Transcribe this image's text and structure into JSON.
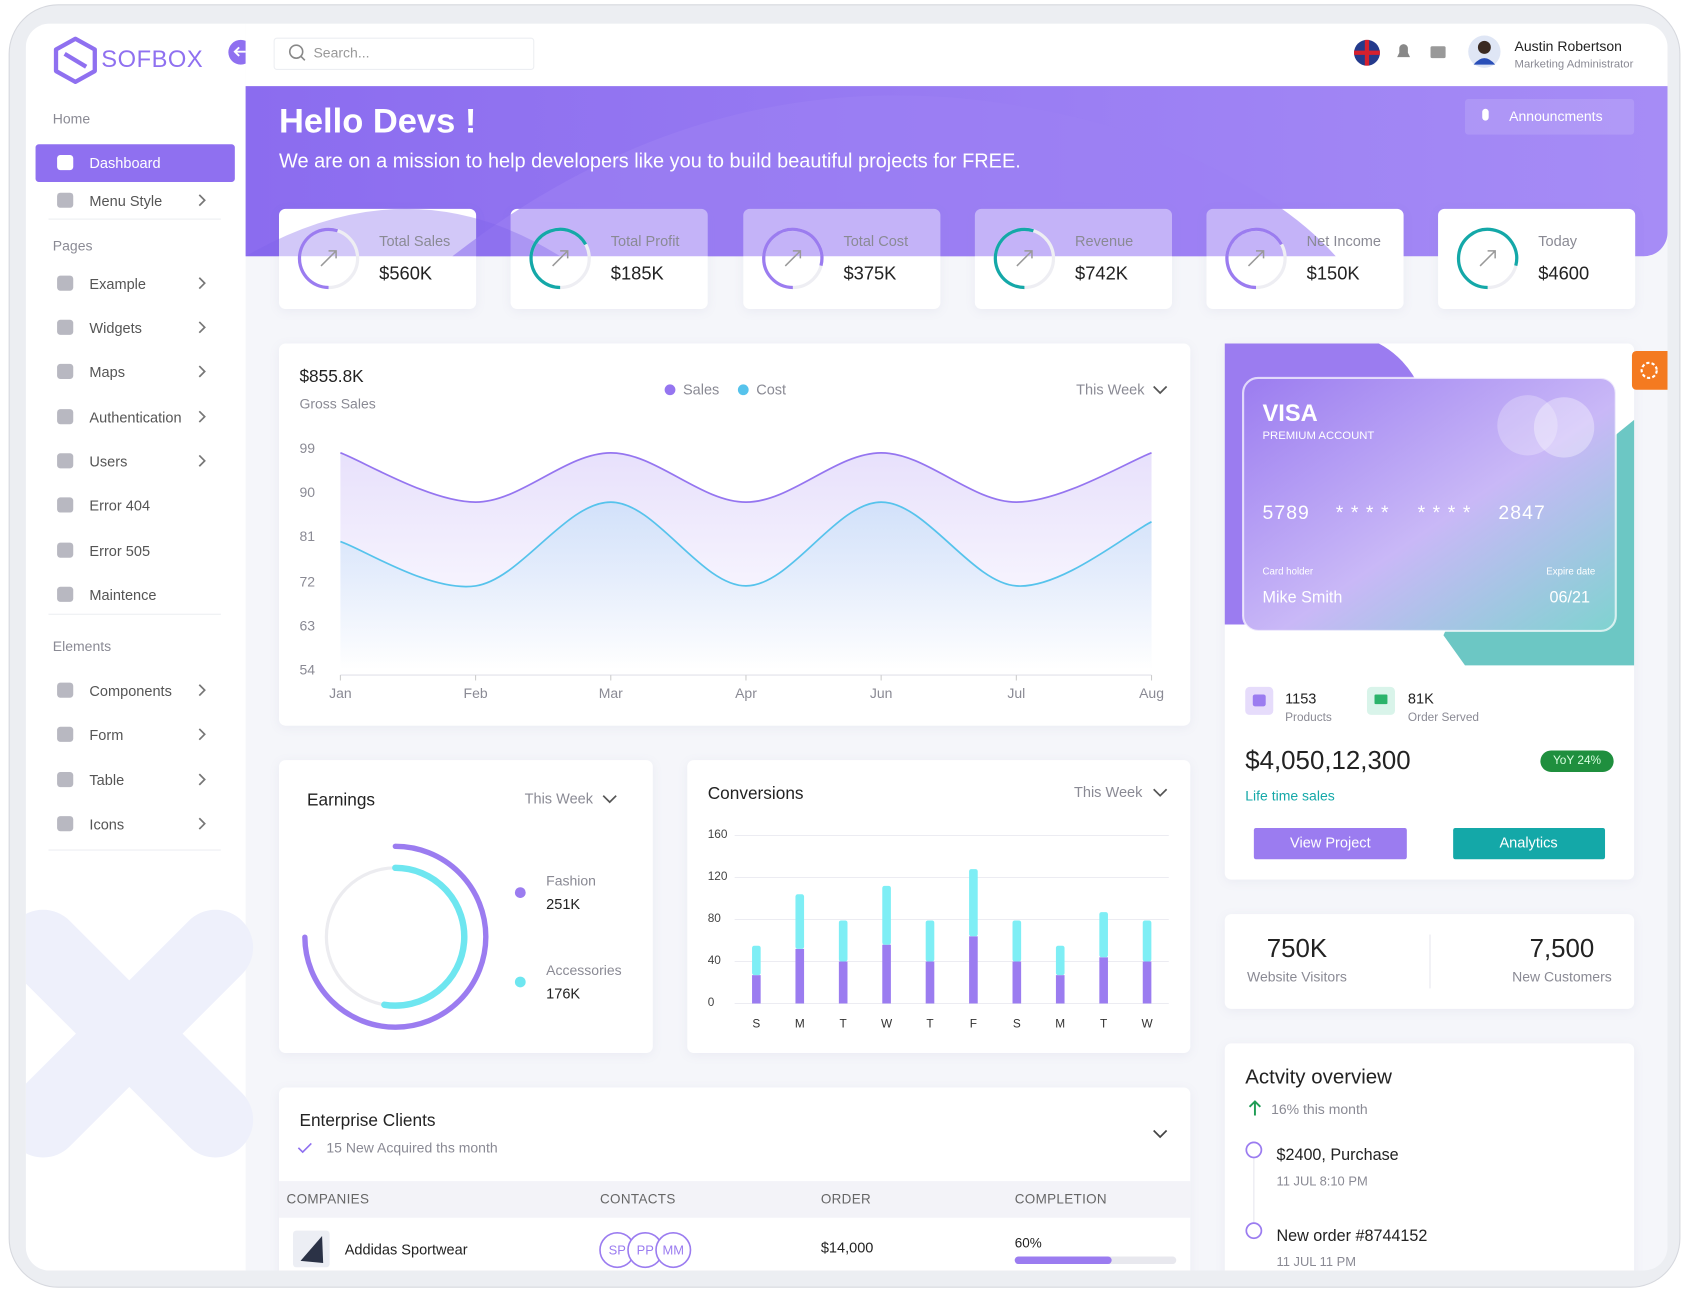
{
  "brand": "SOFBOX",
  "search": "Search...",
  "user": {
    "name": "Austin Robertson",
    "role": "Marketing Administrator"
  },
  "sidebar": [
    {
      "title": "Home",
      "items": [
        {
          "label": "Dashboard",
          "active": true
        },
        {
          "label": "Menu Style",
          "submenu": true
        }
      ]
    },
    {
      "title": "Pages",
      "items": [
        {
          "label": "Example",
          "submenu": true
        },
        {
          "label": "Widgets",
          "submenu": true
        },
        {
          "label": "Maps",
          "submenu": true
        },
        {
          "label": "Authentication",
          "submenu": true
        },
        {
          "label": "Users",
          "submenu": true
        },
        {
          "label": "Error 404"
        },
        {
          "label": "Error 505"
        },
        {
          "label": "Maintence"
        }
      ]
    },
    {
      "title": "Elements",
      "items": [
        {
          "label": "Components",
          "submenu": true
        },
        {
          "label": "Form",
          "submenu": true
        },
        {
          "label": "Table",
          "submenu": true
        },
        {
          "label": "Icons",
          "submenu": true
        }
      ]
    }
  ],
  "hero": {
    "title": "Hello Devs !",
    "subtitle": "We are on a mission to help developers like you to build beautiful projects for FREE.",
    "button": "Announcments"
  },
  "stats": [
    {
      "label": "Total Sales",
      "value": "$560K"
    },
    {
      "label": "Total Profit",
      "value": "$185K"
    },
    {
      "label": "Total Cost",
      "value": "$375K"
    },
    {
      "label": "Revenue",
      "value": "$742K"
    },
    {
      "label": "Net Income",
      "value": "$150K"
    },
    {
      "label": "Today",
      "value": "$4600"
    }
  ],
  "chart_data": [
    {
      "type": "line",
      "title": "$855.8K",
      "subtitle": "Gross Sales",
      "filter": "This Week",
      "categories": [
        "Jan",
        "Feb",
        "Mar",
        "Apr",
        "Jun",
        "Jul",
        "Aug"
      ],
      "series": [
        {
          "name": "Sales",
          "color": "#9575f0",
          "values": [
            98,
            88,
            98,
            88,
            98,
            88,
            98
          ]
        },
        {
          "name": "Cost",
          "color": "#56c3ec",
          "values": [
            80,
            71,
            88,
            71,
            88,
            71,
            84
          ]
        }
      ],
      "ylim": [
        54,
        99
      ],
      "yticks": [
        99,
        90,
        81,
        72,
        63,
        54
      ]
    },
    {
      "type": "radial_bar",
      "title": "Earnings",
      "filter": "This Week",
      "categories": [
        "Fashion",
        "Accessories"
      ],
      "values": [
        251,
        176
      ],
      "value_labels": [
        "251K",
        "176K"
      ],
      "colors": [
        "#9b7cf0",
        "#6ee6f0"
      ],
      "ylim": [
        0,
        335
      ]
    },
    {
      "type": "stacked_bar",
      "title": "Conversions",
      "filter": "This Week",
      "categories": [
        "S",
        "M",
        "T",
        "W",
        "T",
        "F",
        "S",
        "M",
        "T",
        "W"
      ],
      "series": [
        {
          "color": "#9b7cf0",
          "values": [
            27,
            52,
            40,
            56,
            40,
            64,
            40,
            27,
            44,
            40
          ]
        },
        {
          "color": "#7eeef5",
          "values": [
            28,
            52,
            39,
            56,
            39,
            64,
            39,
            28,
            43,
            39
          ]
        }
      ],
      "ylim": [
        0,
        160
      ],
      "yticks": [
        0,
        40,
        80,
        120,
        160
      ],
      "grid": true
    }
  ],
  "card": {
    "brand": "VISA",
    "tier": "PREMIUM ACCOUNT",
    "number": [
      "5789",
      "* * * *",
      "* * * *",
      "2847"
    ],
    "holder_label": "Card holder",
    "holder": "Mike Smith",
    "expiry_label": "Expire date",
    "expiry": "06/21",
    "products": {
      "value": "1153",
      "label": "Products"
    },
    "orders": {
      "value": "81K",
      "label": "Order Served"
    },
    "total": "$4,050,12,300",
    "badge": "YoY 24%",
    "total_label": "Life time sales",
    "buttons": [
      "View Project",
      "Analytics"
    ]
  },
  "visitors": [
    {
      "value": "750K",
      "label": "Website Visitors"
    },
    {
      "value": "7,500",
      "label": "New Customers"
    }
  ],
  "activity": {
    "title": "Actvity overview",
    "change": "16% this month",
    "items": [
      {
        "title": "$2400, Purchase",
        "time": "11 JUL 8:10 PM"
      },
      {
        "title": "New order #8744152",
        "time": "11 JUL 11 PM"
      }
    ]
  },
  "clients": {
    "title": "Enterprise Clients",
    "subtitle": "15 New Acquired ths month",
    "columns": [
      "COMPANIES",
      "CONTACTS",
      "ORDER",
      "COMPLETION"
    ],
    "rows": [
      {
        "company": "Addidas Sportwear",
        "contacts": [
          "SP",
          "PP",
          "MM"
        ],
        "order": "$14,000",
        "completion": {
          "value": 60,
          "label": "60%"
        }
      }
    ]
  }
}
